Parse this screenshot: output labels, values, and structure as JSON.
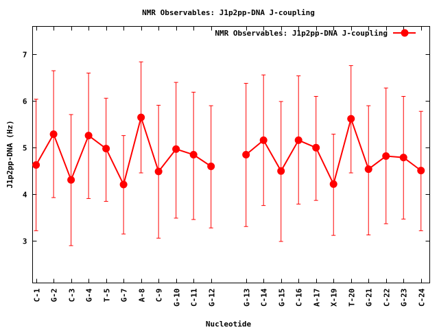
{
  "chart_data": {
    "type": "line",
    "title": "NMR Observables: J1p2pp-DNA J-coupling",
    "xlabel": "Nucleotide",
    "ylabel": "J1p2pp-DNA (Hz)",
    "ylim": [
      2.1,
      7.6
    ],
    "xlim": [
      0.8,
      23.5
    ],
    "yticks": [
      3,
      4,
      5,
      6,
      7
    ],
    "grid": false,
    "legend": {
      "position": "top-right",
      "label": "NMR Observables: J1p2pp-DNA J-coupling"
    },
    "color": "#ff0000",
    "categories": [
      "C-1",
      "G-2",
      "C-3",
      "G-4",
      "T-5",
      "G-7",
      "A-8",
      "C-9",
      "G-10",
      "C-11",
      "G-12",
      "G-13",
      "C-14",
      "G-15",
      "C-16",
      "A-17",
      "X-19",
      "T-20",
      "G-21",
      "C-22",
      "G-23",
      "C-24"
    ],
    "x": [
      1,
      2,
      3,
      4,
      5,
      6,
      7,
      8,
      9,
      10,
      11,
      13,
      14,
      15,
      16,
      17,
      18,
      19,
      20,
      21,
      22,
      23
    ],
    "segments": [
      [
        0,
        10
      ],
      [
        11,
        21
      ]
    ],
    "values": [
      4.63,
      5.29,
      4.31,
      5.26,
      4.98,
      4.21,
      5.65,
      4.49,
      4.97,
      4.85,
      4.6,
      4.85,
      5.16,
      4.5,
      5.16,
      5.0,
      4.22,
      5.62,
      4.54,
      4.82,
      4.79,
      4.51
    ],
    "err_low": [
      3.22,
      3.93,
      2.9,
      3.91,
      3.85,
      3.15,
      4.46,
      3.06,
      3.49,
      3.46,
      3.28,
      3.31,
      3.76,
      2.99,
      3.79,
      3.87,
      3.12,
      4.46,
      3.13,
      3.37,
      3.47,
      3.22
    ],
    "err_high": [
      6.04,
      6.65,
      5.71,
      6.6,
      6.06,
      5.26,
      6.84,
      5.91,
      6.4,
      6.19,
      5.9,
      6.38,
      6.56,
      5.99,
      6.54,
      6.1,
      5.29,
      6.76,
      5.9,
      6.28,
      6.1,
      5.78
    ]
  }
}
